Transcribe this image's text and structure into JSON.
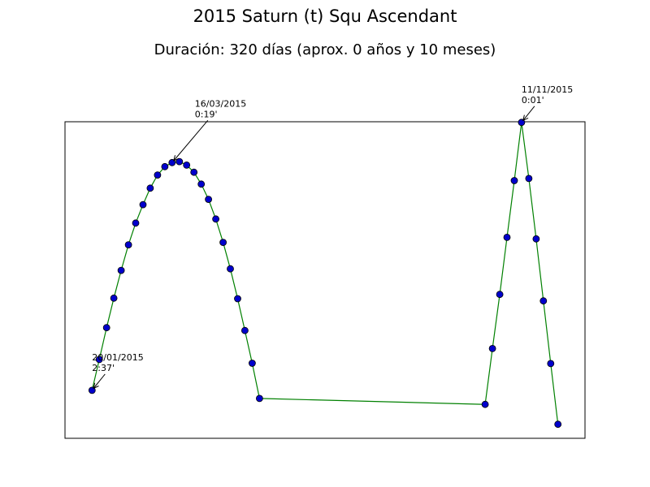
{
  "chart_data": {
    "type": "line",
    "title": "2015 Saturn (t) Squ Ascendant",
    "subtitle": "Duración: 320 días (aprox. 0 años y 10 meses)",
    "xlabel": "",
    "ylabel": "",
    "grid": false,
    "line_color": "#008000",
    "marker_color": "#0000cc",
    "marker_edge_color": "#000000",
    "series": [
      {
        "points": [
          {
            "x": "2015-01-20",
            "y": 2.62
          },
          {
            "x": "2015-01-25",
            "y": 1.63
          },
          {
            "x": "2015-01-30",
            "y": 0.61
          },
          {
            "x": "2015-02-04",
            "y": -0.34
          },
          {
            "x": "2015-02-09",
            "y": -1.23
          },
          {
            "x": "2015-02-14",
            "y": -2.05
          },
          {
            "x": "2015-02-19",
            "y": -2.75
          },
          {
            "x": "2015-02-24",
            "y": -3.34
          },
          {
            "x": "2015-03-01",
            "y": -3.87
          },
          {
            "x": "2015-03-06",
            "y": -4.29
          },
          {
            "x": "2015-03-11",
            "y": -4.56
          },
          {
            "x": "2015-03-16",
            "y": -4.69
          },
          {
            "x": "2015-03-21",
            "y": -4.72
          },
          {
            "x": "2015-03-26",
            "y": -4.61
          },
          {
            "x": "2015-03-31",
            "y": -4.38
          },
          {
            "x": "2015-04-05",
            "y": -4.0
          },
          {
            "x": "2015-04-10",
            "y": -3.51
          },
          {
            "x": "2015-04-15",
            "y": -2.88
          },
          {
            "x": "2015-04-20",
            "y": -2.13
          },
          {
            "x": "2015-04-25",
            "y": -1.28
          },
          {
            "x": "2015-04-30",
            "y": -0.32
          },
          {
            "x": "2015-05-05",
            "y": 0.7
          },
          {
            "x": "2015-05-10",
            "y": 1.75
          },
          {
            "x": "2015-05-15",
            "y": 2.88
          },
          {
            "x": "2015-10-17",
            "y": 3.07
          },
          {
            "x": "2015-10-22",
            "y": 1.28
          },
          {
            "x": "2015-10-27",
            "y": -0.46
          },
          {
            "x": "2015-11-01",
            "y": -2.29
          },
          {
            "x": "2015-11-06",
            "y": -4.11
          },
          {
            "x": "2015-11-11",
            "y": -5.98
          },
          {
            "x": "2015-11-16",
            "y": -4.18
          },
          {
            "x": "2015-11-21",
            "y": -2.24
          },
          {
            "x": "2015-11-26",
            "y": -0.25
          },
          {
            "x": "2015-12-01",
            "y": 1.76
          },
          {
            "x": "2015-12-06",
            "y": 3.71
          }
        ]
      }
    ],
    "annotations": [
      {
        "date": "20/01/2015",
        "value": "2:37'",
        "point_index": 0
      },
      {
        "date": "16/03/2015",
        "value": "0:19'",
        "point_index": 11
      },
      {
        "date": "11/11/2015",
        "value": "0:01'",
        "point_index": 29
      }
    ]
  }
}
